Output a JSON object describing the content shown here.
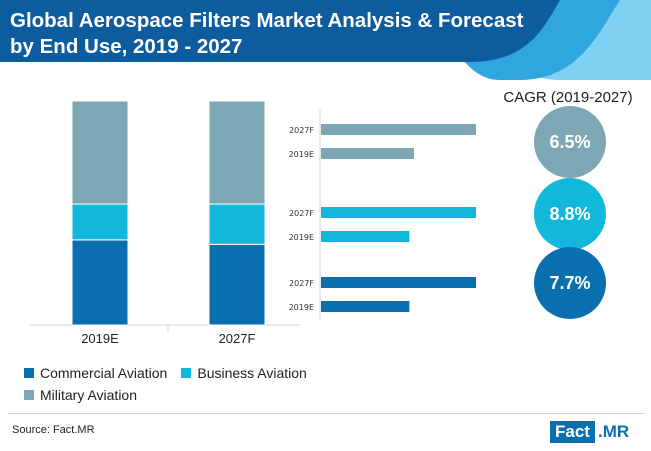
{
  "title": {
    "line1": "Global Aerospace Filters Market Analysis & Forecast",
    "line2": "by End Use, 2019 - 2027"
  },
  "colors": {
    "header_dark": "#0d5c9e",
    "header_mid": "#2fa6dd",
    "header_light": "#7fd0f2",
    "commercial": "#0a6fae",
    "business": "#12b8dc",
    "military": "#7ea7b5",
    "axis": "#cfd3d6"
  },
  "chart_data": [
    {
      "type": "bar",
      "stacked": true,
      "categories": [
        "2019E",
        "2027F"
      ],
      "series": [
        {
          "name": "Commercial Aviation",
          "values": [
            38,
            36
          ]
        },
        {
          "name": "Business Aviation",
          "values": [
            16,
            18
          ]
        },
        {
          "name": "Military Aviation",
          "values": [
            46,
            46
          ]
        }
      ],
      "ylim": [
        0,
        100
      ],
      "unit": "% share"
    },
    {
      "type": "bar",
      "orientation": "horizontal",
      "groups": [
        {
          "segment": "Military Aviation",
          "bars": [
            {
              "label": "2027F",
              "value": 100
            },
            {
              "label": "2019E",
              "value": 60
            }
          ]
        },
        {
          "segment": "Business Aviation",
          "bars": [
            {
              "label": "2027F",
              "value": 100
            },
            {
              "label": "2019E",
              "value": 57
            }
          ]
        },
        {
          "segment": "Commercial Aviation",
          "bars": [
            {
              "label": "2027F",
              "value": 100
            },
            {
              "label": "2019E",
              "value": 57
            }
          ]
        }
      ],
      "xlim": [
        0,
        100
      ],
      "unit": "relative size"
    }
  ],
  "legend": {
    "items": [
      "Commercial Aviation",
      "Business Aviation",
      "Military Aviation"
    ]
  },
  "cagr": {
    "title": "CAGR (2019-2027)",
    "values": [
      {
        "segment": "Military Aviation",
        "label": "6.5%"
      },
      {
        "segment": "Business Aviation",
        "label": "8.8%"
      },
      {
        "segment": "Commercial Aviation",
        "label": "7.7%"
      }
    ]
  },
  "source": "Source: Fact.MR",
  "logo": {
    "left": "Fact",
    "right": ".MR"
  }
}
